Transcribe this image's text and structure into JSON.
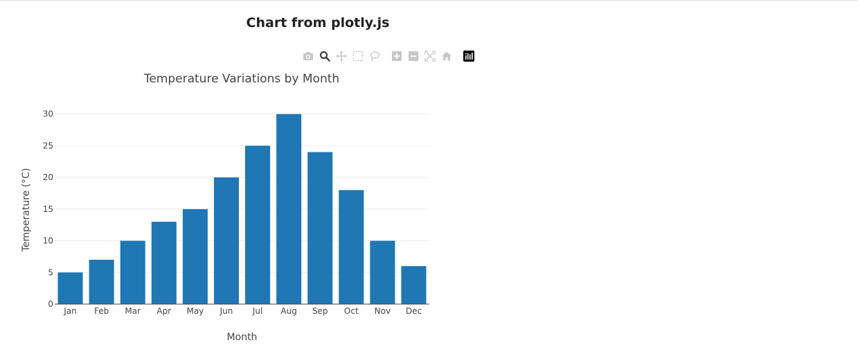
{
  "page": {
    "heading": "Chart from plotly.js"
  },
  "modebar": {
    "buttons": [
      {
        "name": "camera-icon"
      },
      {
        "name": "zoom-icon"
      },
      {
        "name": "pan-icon"
      },
      {
        "name": "box-select-icon"
      },
      {
        "name": "lasso-select-icon"
      },
      {
        "name": "zoom-in-icon"
      },
      {
        "name": "zoom-out-icon"
      },
      {
        "name": "autoscale-icon"
      },
      {
        "name": "reset-axes-icon"
      },
      {
        "name": "plotly-logo-icon"
      }
    ],
    "active_color": "#444444",
    "inactive_color": "#c8c8c8"
  },
  "chart_data": {
    "type": "bar",
    "title": "Temperature Variations by Month",
    "xlabel": "Month",
    "ylabel": "Temperature (°C)",
    "categories": [
      "Jan",
      "Feb",
      "Mar",
      "Apr",
      "May",
      "Jun",
      "Jul",
      "Aug",
      "Sep",
      "Oct",
      "Nov",
      "Dec"
    ],
    "values": [
      5,
      7,
      10,
      13,
      15,
      20,
      25,
      30,
      24,
      18,
      10,
      6
    ],
    "ylim": [
      0,
      31.6
    ],
    "yticks": [
      0,
      5,
      10,
      15,
      20,
      25,
      30
    ],
    "grid": true,
    "bar_color": "#1f77b4"
  }
}
